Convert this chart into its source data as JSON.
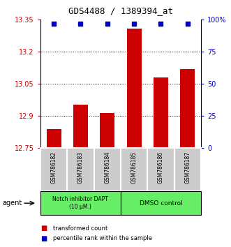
{
  "title": "GDS4488 / 1389394_at",
  "samples": [
    "GSM786182",
    "GSM786183",
    "GSM786184",
    "GSM786185",
    "GSM786186",
    "GSM786187"
  ],
  "bar_values": [
    12.84,
    12.955,
    12.915,
    13.31,
    13.08,
    13.12
  ],
  "percentile_values": [
    97,
    97,
    97,
    97,
    97,
    97
  ],
  "bar_color": "#cc0000",
  "percentile_color": "#0000cc",
  "ylim_left": [
    12.75,
    13.35
  ],
  "ylim_right": [
    0,
    100
  ],
  "yticks_left": [
    12.75,
    12.9,
    13.05,
    13.2,
    13.35
  ],
  "yticks_left_labels": [
    "12.75",
    "12.9",
    "13.05",
    "13.2",
    "13.35"
  ],
  "yticks_right": [
    0,
    25,
    50,
    75,
    100
  ],
  "yticks_right_labels": [
    "0",
    "25",
    "50",
    "75",
    "100%"
  ],
  "grid_ticks": [
    12.9,
    13.05,
    13.2
  ],
  "group1_label": "Notch inhibitor DAPT\n(10 μM.)",
  "group2_label": "DMSO control",
  "group_bg_color": "#66ee66",
  "sample_bg_color": "#cccccc",
  "legend_red_label": "transformed count",
  "legend_blue_label": "percentile rank within the sample",
  "agent_label": "agent"
}
